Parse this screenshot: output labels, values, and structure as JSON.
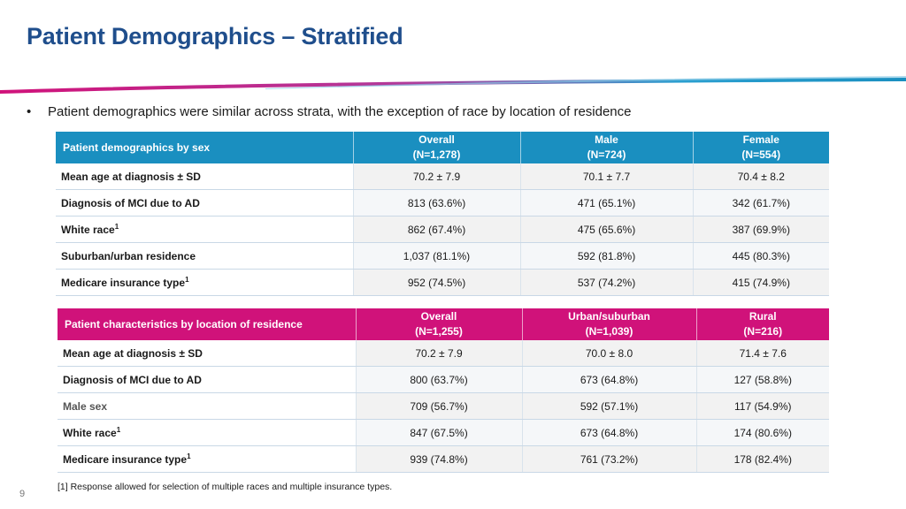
{
  "slide": {
    "title": "Patient Demographics – Stratified",
    "bullet": "Patient demographics were similar across strata, with the exception of race by location of residence",
    "footnote": "[1] Response allowed for selection of multiple races and multiple insurance types.",
    "page_number": "9",
    "colors": {
      "title": "#1f4e8c",
      "table_sex_header": "#1a8fc0",
      "table_location_header": "#d0127a"
    }
  },
  "table_sex": {
    "header": {
      "label": "Patient demographics by sex",
      "c1": "Overall",
      "c1_n": "(N=1,278)",
      "c2": "Male",
      "c2_n": "(N=724)",
      "c3": "Female",
      "c3_n": "(N=554)"
    },
    "rows": [
      {
        "label": "Mean age at diagnosis ± SD",
        "sup": "",
        "c1": "70.2  ± 7.9",
        "c2": "70.1 ± 7.7",
        "c3": "70.4 ± 8.2"
      },
      {
        "label": "Diagnosis of MCI due to AD",
        "sup": "",
        "c1": "813 (63.6%)",
        "c2": "471 (65.1%)",
        "c3": "342 (61.7%)"
      },
      {
        "label": "White race",
        "sup": "1",
        "c1": "862 (67.4%)",
        "c2": "475 (65.6%)",
        "c3": "387 (69.9%)"
      },
      {
        "label": "Suburban/urban residence",
        "sup": "",
        "c1": "1,037 (81.1%)",
        "c2": "592 (81.8%)",
        "c3": "445 (80.3%)"
      },
      {
        "label": "Medicare insurance type",
        "sup": "1",
        "c1": "952 (74.5%)",
        "c2": "537 (74.2%)",
        "c3": "415 (74.9%)"
      }
    ]
  },
  "table_location": {
    "header": {
      "label": "Patient characteristics by location of residence",
      "c1": "Overall",
      "c1_n": "(N=1,255)",
      "c2": "Urban/suburban",
      "c2_n": "(N=1,039)",
      "c3": "Rural",
      "c3_n": "(N=216)"
    },
    "rows": [
      {
        "label": "Mean age at diagnosis ± SD",
        "sup": "",
        "c1": "70.2 ± 7.9",
        "c2": "70.0 ± 8.0",
        "c3": "71.4 ± 7.6"
      },
      {
        "label": "Diagnosis of MCI due to AD",
        "sup": "",
        "c1": "800 (63.7%)",
        "c2": "673 (64.8%)",
        "c3": "127 (58.8%)"
      },
      {
        "label": "Male sex",
        "sup": "",
        "c1": "709 (56.7%)",
        "c2": "592 (57.1%)",
        "c3": "117 (54.9%)"
      },
      {
        "label": "White race",
        "sup": "1",
        "c1": "847 (67.5%)",
        "c2": "673 (64.8%)",
        "c3": "174 (80.6%)"
      },
      {
        "label": "Medicare insurance type",
        "sup": "1",
        "c1": "939 (74.8%)",
        "c2": "761 (73.2%)",
        "c3": "178 (82.4%)"
      }
    ]
  }
}
